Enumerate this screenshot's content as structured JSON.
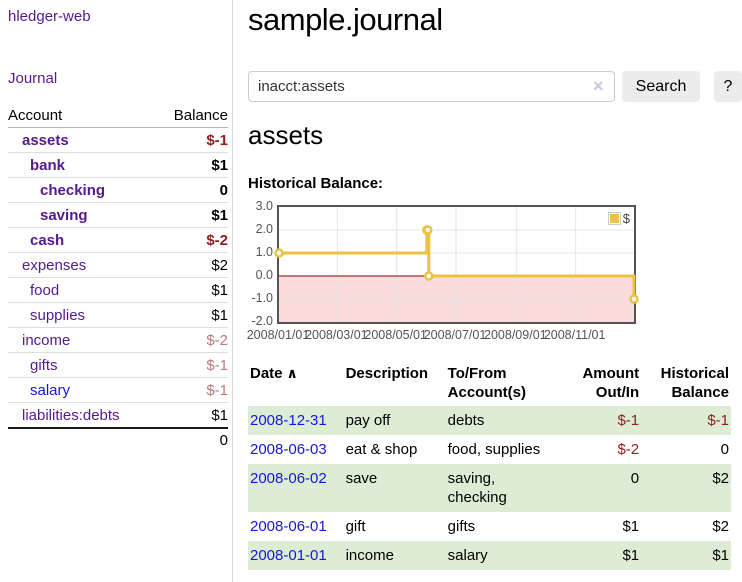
{
  "brand": "hledger-web",
  "nav": {
    "journal": "Journal"
  },
  "sidebar": {
    "headers": {
      "account": "Account",
      "balance": "Balance"
    },
    "accounts": [
      {
        "name": "assets",
        "balance": "$-1"
      },
      {
        "name": "bank",
        "balance": "$1"
      },
      {
        "name": "checking",
        "balance": "0"
      },
      {
        "name": "saving",
        "balance": "$1"
      },
      {
        "name": "cash",
        "balance": "$-2"
      },
      {
        "name": "expenses",
        "balance": "$2"
      },
      {
        "name": "food",
        "balance": "$1"
      },
      {
        "name": "supplies",
        "balance": "$1"
      },
      {
        "name": "income",
        "balance": "$-2"
      },
      {
        "name": "gifts",
        "balance": "$-1"
      },
      {
        "name": "salary",
        "balance": "$-1"
      },
      {
        "name": "liabilities:debts",
        "balance": "$1"
      }
    ],
    "total": "0"
  },
  "main": {
    "title": "sample.journal",
    "search": {
      "value": "inacct:assets",
      "clear_icon": "×",
      "search_button": "Search",
      "help_button": "?"
    },
    "account_heading": "assets",
    "chart_title": "Historical Balance:"
  },
  "chart_data": {
    "type": "line",
    "style": "steps",
    "title": "Historical Balance",
    "series": [
      {
        "name": "$",
        "color": "#EDC240",
        "points": [
          [
            "2008-01-01",
            1
          ],
          [
            "2008-06-01",
            2
          ],
          [
            "2008-06-02",
            2
          ],
          [
            "2008-06-03",
            0
          ],
          [
            "2008-12-31",
            -1
          ]
        ]
      }
    ],
    "x_range": [
      "2008-01-01",
      "2008-12-31"
    ],
    "ylim": [
      -2,
      3
    ],
    "yticks": [
      {
        "v": 3,
        "label": "3.0"
      },
      {
        "v": 2,
        "label": "2.0"
      },
      {
        "v": 1,
        "label": "1.0"
      },
      {
        "v": 0,
        "label": "0.0"
      },
      {
        "v": -1,
        "label": "-1.0"
      },
      {
        "v": -2,
        "label": "-2.0"
      }
    ],
    "xticks": [
      {
        "d": "2008-01-01",
        "label": "2008/01/01"
      },
      {
        "d": "2008-03-01",
        "label": "2008/03/01"
      },
      {
        "d": "2008-05-01",
        "label": "2008/05/01"
      },
      {
        "d": "2008-07-01",
        "label": "2008/07/01"
      },
      {
        "d": "2008-09-01",
        "label": "2008/09/01"
      },
      {
        "d": "2008-11-01",
        "label": "2008/11/01"
      }
    ],
    "legend": {
      "label": "$",
      "position": "top-right"
    },
    "grid": true,
    "negative_fill": "#fbdcdc",
    "zero_line_color": "#8b0000",
    "grid_color": "#e6e6e6",
    "border_color": "#545454"
  },
  "register": {
    "headers": {
      "date": "Date",
      "description": "Description",
      "accounts": "To/From Account(s)",
      "amount": "Amount Out/In",
      "balance": "Historical Balance"
    },
    "sort_icon": "∧",
    "rows": [
      {
        "date": "2008-12-31",
        "description": "pay off",
        "accounts": "debts",
        "amount": "$-1",
        "balance": "$-1"
      },
      {
        "date": "2008-06-03",
        "description": "eat & shop",
        "accounts": "food, supplies",
        "amount": "$-2",
        "balance": "0"
      },
      {
        "date": "2008-06-02",
        "description": "save",
        "accounts": "saving, checking",
        "amount": "0",
        "balance": "$2"
      },
      {
        "date": "2008-06-01",
        "description": "gift",
        "accounts": "gifts",
        "amount": "$1",
        "balance": "$2"
      },
      {
        "date": "2008-01-01",
        "description": "income",
        "accounts": "salary",
        "amount": "$1",
        "balance": "$1"
      }
    ]
  }
}
